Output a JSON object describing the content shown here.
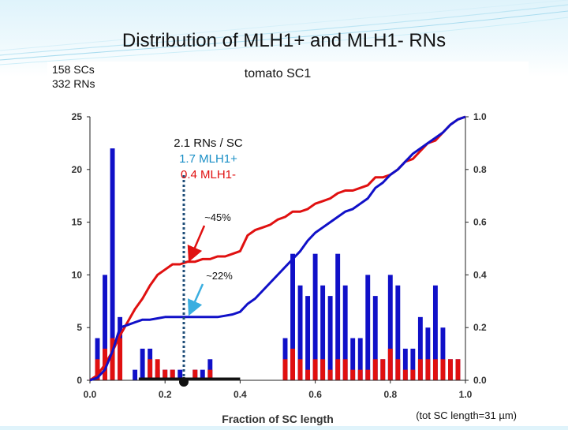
{
  "slide": {
    "title": "Distribution of MLH1+ and MLH1- RNs"
  },
  "stats": {
    "sc_count": "158 SCs",
    "rn_count": "332 RNs"
  },
  "footnote": "(tot SC length=31 µm)",
  "annotations": {
    "rate": "2.1 RNs / SC",
    "plus": "1.7 MLH1+",
    "minus": "0.4 MLH1-",
    "pct_red": "~45%",
    "pct_blue": "~22%"
  },
  "colors": {
    "mlh1_plus": "#1010c8",
    "mlh1_minus": "#e01010",
    "marker": "#1f4e79",
    "arrow_plus": "#3aaee0"
  },
  "chart_data": {
    "type": "bar",
    "title": "tomato SC1",
    "xlabel": "Fraction of SC length",
    "ylabel": "",
    "y2label": "",
    "xlim": [
      0,
      1
    ],
    "ylim": [
      0,
      25
    ],
    "y2lim": [
      0,
      1
    ],
    "xticks": [
      "0.0",
      "0.2",
      "0.4",
      "0.6",
      "0.8",
      "1.0"
    ],
    "yticks": [
      "0",
      "5",
      "10",
      "15",
      "20",
      "25"
    ],
    "y2ticks": [
      "0.0",
      "0.2",
      "0.4",
      "0.6",
      "0.8",
      "1.0"
    ],
    "bin_width": 0.02,
    "bin_centers": [
      0.02,
      0.04,
      0.06,
      0.08,
      0.1,
      0.12,
      0.14,
      0.16,
      0.18,
      0.2,
      0.22,
      0.24,
      0.26,
      0.28,
      0.3,
      0.32,
      0.34,
      0.36,
      0.38,
      0.4,
      0.42,
      0.44,
      0.46,
      0.48,
      0.5,
      0.52,
      0.54,
      0.56,
      0.58,
      0.6,
      0.62,
      0.64,
      0.66,
      0.68,
      0.7,
      0.72,
      0.74,
      0.76,
      0.78,
      0.8,
      0.82,
      0.84,
      0.86,
      0.88,
      0.9,
      0.92,
      0.94,
      0.96,
      0.98
    ],
    "series": [
      {
        "values": [
          4,
          10,
          22,
          6,
          0,
          1,
          3,
          3,
          1,
          1,
          1,
          1,
          0,
          1,
          1,
          2,
          0,
          0,
          0,
          0,
          0,
          0,
          0,
          0,
          0,
          4,
          12,
          9,
          8,
          12,
          9,
          8,
          12,
          9,
          4,
          4,
          10,
          8,
          2,
          10,
          9,
          3,
          3,
          6,
          5,
          9,
          5,
          2,
          2
        ]
      },
      {
        "values": [
          2,
          3,
          4,
          4,
          0,
          0,
          0,
          2,
          2,
          1,
          1,
          0,
          0,
          1,
          0,
          1,
          0,
          0,
          0,
          0,
          0,
          0,
          0,
          0,
          0,
          2,
          3,
          2,
          1,
          2,
          2,
          1,
          2,
          2,
          1,
          1,
          1,
          2,
          2,
          3,
          2,
          1,
          1,
          2,
          2,
          2,
          2,
          2,
          2
        ]
      }
    ],
    "cumulative_red": [
      [
        0,
        0
      ],
      [
        0.02,
        0.02
      ],
      [
        0.04,
        0.06
      ],
      [
        0.06,
        0.11
      ],
      [
        0.08,
        0.17
      ],
      [
        0.1,
        0.22
      ],
      [
        0.12,
        0.27
      ],
      [
        0.14,
        0.31
      ],
      [
        0.16,
        0.36
      ],
      [
        0.18,
        0.4
      ],
      [
        0.2,
        0.42
      ],
      [
        0.22,
        0.44
      ],
      [
        0.24,
        0.44
      ],
      [
        0.26,
        0.45
      ],
      [
        0.28,
        0.45
      ],
      [
        0.3,
        0.46
      ],
      [
        0.32,
        0.46
      ],
      [
        0.34,
        0.47
      ],
      [
        0.36,
        0.47
      ],
      [
        0.38,
        0.48
      ],
      [
        0.4,
        0.49
      ],
      [
        0.42,
        0.55
      ],
      [
        0.44,
        0.57
      ],
      [
        0.46,
        0.58
      ],
      [
        0.48,
        0.59
      ],
      [
        0.5,
        0.61
      ],
      [
        0.52,
        0.62
      ],
      [
        0.54,
        0.64
      ],
      [
        0.56,
        0.64
      ],
      [
        0.58,
        0.65
      ],
      [
        0.6,
        0.67
      ],
      [
        0.62,
        0.68
      ],
      [
        0.64,
        0.69
      ],
      [
        0.66,
        0.71
      ],
      [
        0.68,
        0.72
      ],
      [
        0.7,
        0.72
      ],
      [
        0.72,
        0.73
      ],
      [
        0.74,
        0.74
      ],
      [
        0.76,
        0.77
      ],
      [
        0.78,
        0.77
      ],
      [
        0.8,
        0.78
      ],
      [
        0.82,
        0.8
      ],
      [
        0.84,
        0.83
      ],
      [
        0.86,
        0.84
      ],
      [
        0.88,
        0.87
      ],
      [
        0.9,
        0.9
      ],
      [
        0.92,
        0.91
      ],
      [
        0.94,
        0.94
      ],
      [
        0.96,
        0.97
      ],
      [
        0.98,
        0.99
      ],
      [
        1.0,
        1.0
      ]
    ],
    "cumulative_blue": [
      [
        0,
        0
      ],
      [
        0.02,
        0.01
      ],
      [
        0.04,
        0.04
      ],
      [
        0.06,
        0.11
      ],
      [
        0.08,
        0.2
      ],
      [
        0.1,
        0.21
      ],
      [
        0.12,
        0.22
      ],
      [
        0.14,
        0.23
      ],
      [
        0.16,
        0.23
      ],
      [
        0.18,
        0.235
      ],
      [
        0.2,
        0.24
      ],
      [
        0.22,
        0.24
      ],
      [
        0.24,
        0.24
      ],
      [
        0.26,
        0.24
      ],
      [
        0.28,
        0.24
      ],
      [
        0.3,
        0.24
      ],
      [
        0.32,
        0.24
      ],
      [
        0.34,
        0.24
      ],
      [
        0.36,
        0.245
      ],
      [
        0.38,
        0.25
      ],
      [
        0.4,
        0.26
      ],
      [
        0.42,
        0.29
      ],
      [
        0.44,
        0.31
      ],
      [
        0.46,
        0.34
      ],
      [
        0.48,
        0.37
      ],
      [
        0.5,
        0.4
      ],
      [
        0.52,
        0.43
      ],
      [
        0.54,
        0.46
      ],
      [
        0.56,
        0.49
      ],
      [
        0.58,
        0.53
      ],
      [
        0.6,
        0.56
      ],
      [
        0.62,
        0.58
      ],
      [
        0.64,
        0.6
      ],
      [
        0.66,
        0.62
      ],
      [
        0.68,
        0.64
      ],
      [
        0.7,
        0.65
      ],
      [
        0.72,
        0.67
      ],
      [
        0.74,
        0.69
      ],
      [
        0.76,
        0.73
      ],
      [
        0.78,
        0.75
      ],
      [
        0.8,
        0.78
      ],
      [
        0.82,
        0.8
      ],
      [
        0.84,
        0.83
      ],
      [
        0.86,
        0.86
      ],
      [
        0.88,
        0.88
      ],
      [
        0.9,
        0.9
      ],
      [
        0.92,
        0.92
      ],
      [
        0.94,
        0.94
      ],
      [
        0.96,
        0.97
      ],
      [
        0.98,
        0.99
      ],
      [
        1.0,
        1.0
      ]
    ],
    "marker_x": 0.25,
    "segment_x": [
      0.13,
      0.4
    ]
  }
}
